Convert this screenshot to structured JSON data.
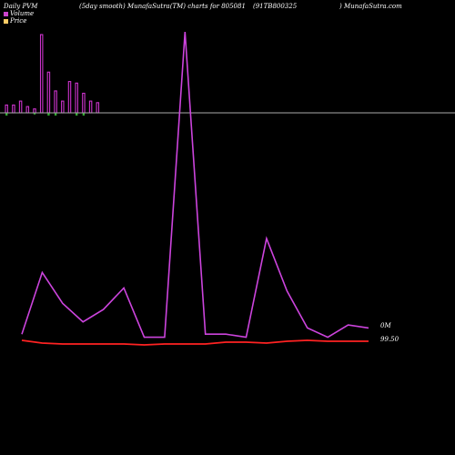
{
  "header": {
    "seg1": "Daily PVM",
    "seg2": "(5day smooth) MunafaSutra(TM) charts for 805081",
    "seg3": "(91TB800325",
    "seg4": ") MunafaSutra.com"
  },
  "legend": {
    "volume_label": "Volume",
    "price_label": "Price",
    "volume_color": "#cc44cc",
    "price_color": "#ffcc66"
  },
  "chart_data": [
    {
      "type": "bar",
      "title": "",
      "series": [
        {
          "name": "Volume",
          "color": "#cc33cc",
          "values": [
            0.1,
            0.1,
            0.15,
            0.08,
            0.05,
            1.0,
            0.52,
            0.28,
            0.15,
            0.4,
            0.38,
            0.25,
            0.15,
            0.13
          ]
        },
        {
          "name": "Price",
          "color": "#33aa33",
          "values": [
            -0.05,
            0,
            0,
            0,
            -0.03,
            0,
            -0.05,
            -0.05,
            0,
            0,
            -0.05,
            -0.05,
            0,
            0
          ]
        }
      ]
    },
    {
      "type": "line",
      "title": "",
      "x": [
        1,
        2,
        3,
        4,
        5,
        6,
        7,
        8,
        9,
        10,
        11,
        12,
        13,
        14,
        15,
        16,
        17,
        18
      ],
      "series": [
        {
          "name": "Volume",
          "color": "#cc44dd",
          "values": [
            0.02,
            0.22,
            0.12,
            0.06,
            0.1,
            0.17,
            0.01,
            0.01,
            1.0,
            0.02,
            0.02,
            0.01,
            0.33,
            0.16,
            0.04,
            0.01,
            0.05,
            0.04
          ]
        },
        {
          "name": "Price",
          "color": "#ff2222",
          "values": [
            99.62,
            99.59,
            99.58,
            99.58,
            99.58,
            99.58,
            99.57,
            99.58,
            99.58,
            99.58,
            99.6,
            99.6,
            99.59,
            99.61,
            99.62,
            99.61,
            99.61,
            99.61
          ]
        }
      ],
      "right_labels": [
        "0M",
        "99.50"
      ]
    }
  ]
}
